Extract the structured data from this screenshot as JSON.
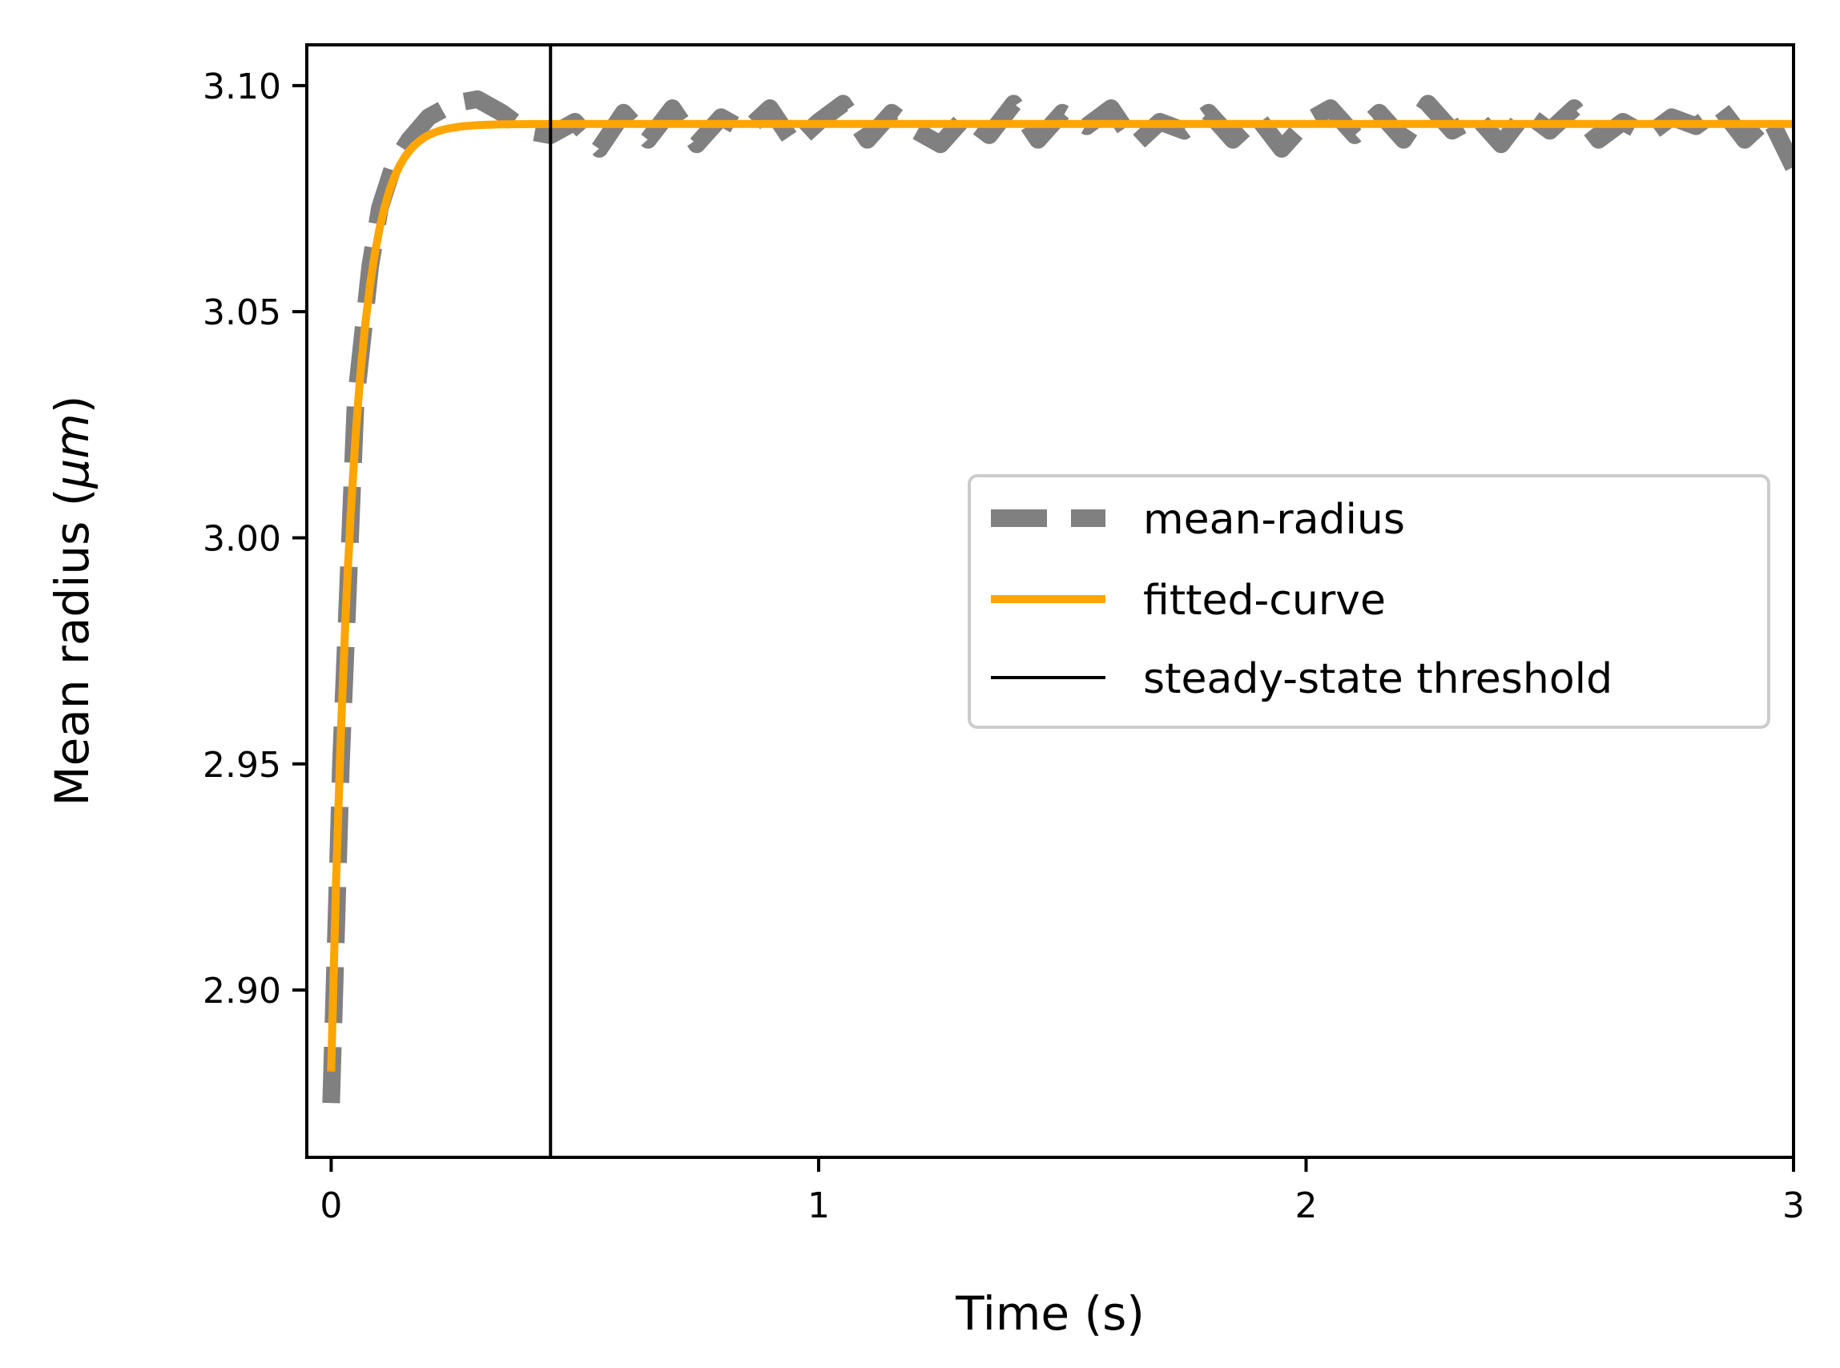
{
  "chart_data": {
    "type": "line",
    "xlabel": "Time (s)",
    "ylabel_prefix": "Mean radius (",
    "ylabel_unit": "μm",
    "ylabel_suffix": ")",
    "xlim": [
      -0.05,
      3.0
    ],
    "ylim": [
      2.863,
      3.109
    ],
    "x_ticks": [
      0,
      1,
      2,
      3
    ],
    "x_tick_labels": [
      "0",
      "1",
      "2",
      "3"
    ],
    "y_ticks": [
      2.9,
      2.95,
      3.0,
      3.05,
      3.1
    ],
    "y_tick_labels": [
      "2.90",
      "2.95",
      "3.00",
      "3.05",
      "3.10"
    ],
    "grid": false,
    "legend_position": "center-right",
    "threshold_x": 0.45,
    "series": [
      {
        "name": "mean-radius",
        "style": "dashed",
        "color": "#808080",
        "x": [
          0,
          0.02,
          0.05,
          0.08,
          0.1,
          0.13,
          0.16,
          0.2,
          0.25,
          0.3,
          0.35,
          0.4,
          0.45,
          0.5,
          0.55,
          0.6,
          0.65,
          0.7,
          0.75,
          0.8,
          0.85,
          0.9,
          0.95,
          1.0,
          1.05,
          1.1,
          1.15,
          1.2,
          1.25,
          1.3,
          1.35,
          1.4,
          1.45,
          1.5,
          1.55,
          1.6,
          1.65,
          1.7,
          1.75,
          1.8,
          1.85,
          1.9,
          1.95,
          2.0,
          2.05,
          2.1,
          2.15,
          2.2,
          2.25,
          2.3,
          2.35,
          2.4,
          2.45,
          2.5,
          2.55,
          2.6,
          2.65,
          2.7,
          2.75,
          2.8,
          2.85,
          2.9,
          2.95,
          3.0
        ],
        "y": [
          2.875,
          2.95,
          3.03,
          3.06,
          3.073,
          3.083,
          3.088,
          3.093,
          3.096,
          3.097,
          3.094,
          3.09,
          3.089,
          3.092,
          3.086,
          3.094,
          3.088,
          3.095,
          3.087,
          3.093,
          3.09,
          3.095,
          3.087,
          3.092,
          3.096,
          3.088,
          3.094,
          3.09,
          3.087,
          3.093,
          3.089,
          3.096,
          3.088,
          3.094,
          3.091,
          3.095,
          3.087,
          3.092,
          3.09,
          3.094,
          3.088,
          3.093,
          3.086,
          3.092,
          3.095,
          3.089,
          3.094,
          3.088,
          3.096,
          3.09,
          3.093,
          3.087,
          3.094,
          3.09,
          3.095,
          3.088,
          3.092,
          3.089,
          3.093,
          3.091,
          3.095,
          3.088,
          3.093,
          3.082
        ]
      },
      {
        "name": "fitted-curve",
        "style": "solid",
        "color": "#FFA500",
        "model": "exponential-approach",
        "y_start": 2.882,
        "y_plateau": 3.0915,
        "tau": 0.045
      },
      {
        "name": "steady-state threshold",
        "style": "solid",
        "color": "#000000"
      }
    ]
  }
}
